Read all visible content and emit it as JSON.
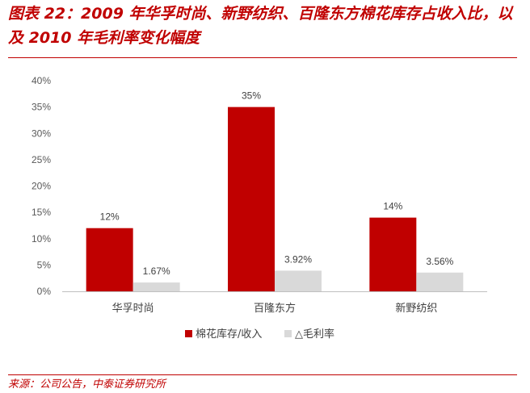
{
  "title": "图表 22：2009 年华孚时尚、新野纺织、百隆东方棉花库存占收入比，以及 2010 年毛利率变化幅度",
  "source": "来源：公司公告，中泰证券研究所",
  "colors": {
    "accent": "#c00000",
    "series1": "#c00000",
    "series2": "#d9d9d9"
  },
  "chart_data": {
    "type": "bar",
    "categories": [
      "华孚时尚",
      "百隆东方",
      "新野纺织"
    ],
    "series": [
      {
        "name": "棉花库存/收入",
        "values": [
          12,
          35,
          14
        ],
        "labels": [
          "12%",
          "35%",
          "14%"
        ],
        "color": "#c00000"
      },
      {
        "name": "△毛利率",
        "values": [
          1.67,
          3.92,
          3.56
        ],
        "labels": [
          "1.67%",
          "3.92%",
          "3.56%"
        ],
        "color": "#d9d9d9"
      }
    ],
    "yticks": [
      "0%",
      "5%",
      "10%",
      "15%",
      "20%",
      "25%",
      "30%",
      "35%",
      "40%"
    ],
    "ylim": [
      0,
      40
    ],
    "ystep": 5,
    "legend_position": "bottom",
    "grid": false
  }
}
